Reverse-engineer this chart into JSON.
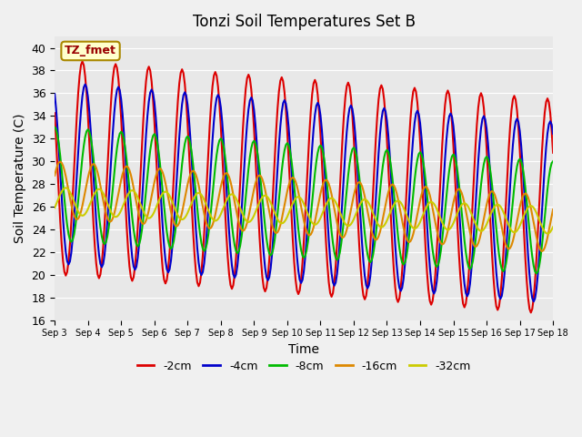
{
  "title": "Tonzi Soil Temperatures Set B",
  "xlabel": "Time",
  "ylabel": "Soil Temperature (C)",
  "ylim": [
    16,
    41
  ],
  "yticks": [
    16,
    18,
    20,
    22,
    24,
    26,
    28,
    30,
    32,
    34,
    36,
    38,
    40
  ],
  "xtick_labels": [
    "Sep 3",
    "Sep 4",
    "Sep 5",
    "Sep 6",
    "Sep 7",
    "Sep 8",
    "Sep 9",
    "Sep 10",
    "Sep 11",
    "Sep 12",
    "Sep 13",
    "Sep 14",
    "Sep 15",
    "Sep 16",
    "Sep 17",
    "Sep 18"
  ],
  "colors": {
    "-2cm": "#dd0000",
    "-4cm": "#0000cc",
    "-8cm": "#00bb00",
    "-16cm": "#dd8800",
    "-32cm": "#cccc00"
  },
  "legend_label": "TZ_fmet",
  "legend_bg": "#ffffcc",
  "legend_border": "#aa8800",
  "fig_bg": "#f0f0f0",
  "ax_bg": "#e8e8e8",
  "linewidth": 1.5,
  "series_names": [
    "-2cm",
    "-4cm",
    "-8cm",
    "-16cm",
    "-32cm"
  ],
  "amp_2": 9.5,
  "base_2_s": 29.5,
  "base_2_e": 26.0,
  "phase_2": 0.5833,
  "amp_4": 8.0,
  "base_4_s": 29.0,
  "base_4_e": 25.5,
  "phase_4": 0.6667,
  "amp_8": 5.0,
  "base_8_s": 28.0,
  "base_8_e": 25.0,
  "phase_8": 0.75,
  "amp_16": 2.5,
  "base_16_s": 27.5,
  "base_16_e": 24.5,
  "phase_16": 0.9167,
  "amp_32": 1.2,
  "base_32_s": 26.5,
  "base_32_e": 24.8,
  "phase_32": 1.0833
}
